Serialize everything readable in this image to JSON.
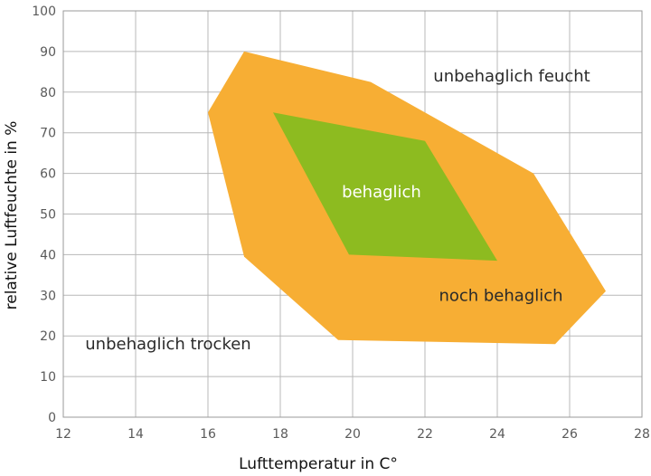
{
  "chart_data": {
    "type": "area",
    "title": "",
    "xlabel": "Lufttemperatur in C°",
    "ylabel": "relative Luftfeuchte in %",
    "xlim": [
      12,
      28
    ],
    "ylim": [
      0,
      100
    ],
    "xticks": [
      12,
      14,
      16,
      18,
      20,
      22,
      24,
      26,
      28
    ],
    "yticks": [
      0,
      10,
      20,
      30,
      40,
      50,
      60,
      70,
      80,
      90,
      100
    ],
    "grid": true,
    "legend": "none",
    "regions": [
      {
        "name": "noch behaglich",
        "color": "#F7AE34",
        "points": [
          [
            17.0,
            90
          ],
          [
            20.5,
            82.5
          ],
          [
            25.0,
            60
          ],
          [
            27.0,
            31
          ],
          [
            25.6,
            18
          ],
          [
            19.6,
            19
          ],
          [
            17.0,
            39.5
          ],
          [
            16.0,
            75
          ]
        ]
      },
      {
        "name": "behaglich",
        "color": "#8DBB20",
        "points": [
          [
            17.8,
            75
          ],
          [
            22.0,
            68
          ],
          [
            24.0,
            38.5
          ],
          [
            19.9,
            40
          ]
        ]
      }
    ],
    "annotations": [
      {
        "text": "unbehaglich feucht",
        "x": 24.4,
        "y": 84,
        "color": "#2a2a2a"
      },
      {
        "text": "behaglich",
        "x": 20.8,
        "y": 55.5,
        "color": "#ffffff"
      },
      {
        "text": "noch behaglich",
        "x": 24.1,
        "y": 30,
        "color": "#2a2a2a"
      },
      {
        "text": "unbehaglich trocken",
        "x": 14.9,
        "y": 18,
        "color": "#2a2a2a"
      }
    ]
  }
}
